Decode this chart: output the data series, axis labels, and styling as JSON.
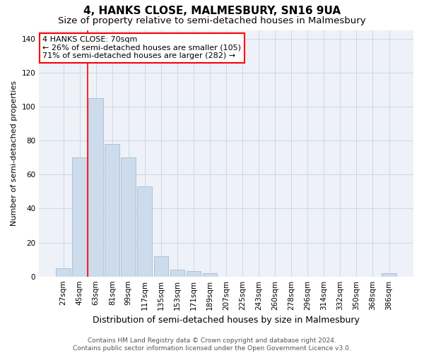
{
  "title": "4, HANKS CLOSE, MALMESBURY, SN16 9UA",
  "subtitle": "Size of property relative to semi-detached houses in Malmesbury",
  "xlabel": "Distribution of semi-detached houses by size in Malmesbury",
  "ylabel": "Number of semi-detached properties",
  "footer_line1": "Contains HM Land Registry data © Crown copyright and database right 2024.",
  "footer_line2": "Contains public sector information licensed under the Open Government Licence v3.0.",
  "categories": [
    "27sqm",
    "45sqm",
    "63sqm",
    "81sqm",
    "99sqm",
    "117sqm",
    "135sqm",
    "153sqm",
    "171sqm",
    "189sqm",
    "207sqm",
    "225sqm",
    "243sqm",
    "260sqm",
    "278sqm",
    "296sqm",
    "314sqm",
    "332sqm",
    "350sqm",
    "368sqm",
    "386sqm"
  ],
  "values": [
    5,
    70,
    105,
    78,
    70,
    53,
    12,
    4,
    3,
    2,
    0,
    0,
    0,
    0,
    0,
    0,
    0,
    0,
    0,
    0,
    2
  ],
  "bar_color": "#ccdcec",
  "bar_edge_color": "#aabccc",
  "grid_color": "#ccd8e4",
  "background_color": "#eef2f8",
  "annotation_text": "4 HANKS CLOSE: 70sqm\n← 26% of semi-detached houses are smaller (105)\n71% of semi-detached houses are larger (282) →",
  "vline_x_index": 2,
  "vline_color": "red",
  "annotation_box_facecolor": "white",
  "annotation_box_edgecolor": "red",
  "ylim": [
    0,
    145
  ],
  "yticks": [
    0,
    20,
    40,
    60,
    80,
    100,
    120,
    140
  ],
  "title_fontsize": 11,
  "subtitle_fontsize": 9.5,
  "xlabel_fontsize": 9,
  "ylabel_fontsize": 8,
  "tick_fontsize": 7.5,
  "annotation_fontsize": 8,
  "footer_fontsize": 6.5
}
